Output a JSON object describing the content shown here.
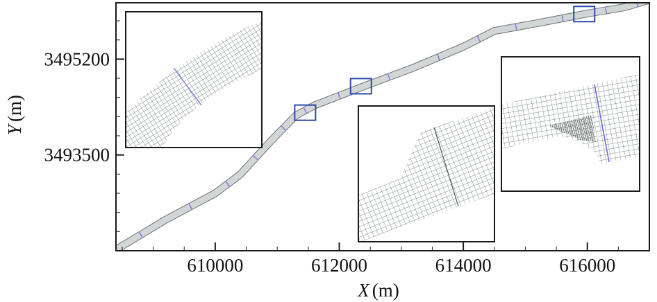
{
  "chart_data": {
    "type": "map",
    "title": "",
    "xlabel": "X (m)",
    "ylabel": "Y (m)",
    "xlabel_var": "X",
    "ylabel_var": "Y",
    "unit": "(m)",
    "xlim": [
      608400,
      617000
    ],
    "ylim": [
      3491800,
      3496200
    ],
    "xticks": [
      {
        "value": 610000,
        "label": "610000"
      },
      {
        "value": 612000,
        "label": "612000"
      },
      {
        "value": 614000,
        "label": "614000"
      },
      {
        "value": 616000,
        "label": "616000"
      }
    ],
    "yticks": [
      {
        "value": 3495200,
        "label": "3495200"
      },
      {
        "value": 3493500,
        "label": "3493500"
      }
    ],
    "river_centerline": [
      [
        608400,
        3491820
      ],
      [
        609200,
        3492350
      ],
      [
        610000,
        3492820
      ],
      [
        610400,
        3493150
      ],
      [
        610900,
        3493750
      ],
      [
        611300,
        3494200
      ],
      [
        611600,
        3494380
      ],
      [
        612400,
        3494720
      ],
      [
        613200,
        3495050
      ],
      [
        614000,
        3495420
      ],
      [
        614500,
        3495700
      ],
      [
        615200,
        3495840
      ],
      [
        616000,
        3496010
      ],
      [
        616600,
        3496120
      ],
      [
        617000,
        3496250
      ]
    ],
    "zoom_boxes": [
      {
        "name": "bend",
        "x": 611450,
        "y": 3494250
      },
      {
        "name": "expansion",
        "x": 612350,
        "y": 3494720
      },
      {
        "name": "spur",
        "x": 615950,
        "y": 3496000
      }
    ],
    "insets": [
      {
        "name": "inset-bend-mesh",
        "shows": "bend"
      },
      {
        "name": "inset-expansion-mesh",
        "shows": "expansion"
      },
      {
        "name": "inset-spur-mesh",
        "shows": "spur"
      }
    ],
    "colors": {
      "river_fill": "#d3d6d6",
      "river_edge": "#6b7070",
      "cross_section": "#7b74e0",
      "zoom_box": "#2b48a8",
      "mesh": "#5c6666",
      "frame": "#1a1a1a"
    }
  }
}
